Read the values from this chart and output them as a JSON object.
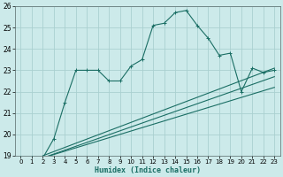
{
  "xlabel": "Humidex (Indice chaleur)",
  "background_color": "#cceaea",
  "grid_color": "#aad0d0",
  "line_color": "#1a6e64",
  "xlim": [
    -0.5,
    23.5
  ],
  "ylim": [
    19,
    26
  ],
  "xticks": [
    0,
    1,
    2,
    3,
    4,
    5,
    6,
    7,
    8,
    9,
    10,
    11,
    12,
    13,
    14,
    15,
    16,
    17,
    18,
    19,
    20,
    21,
    22,
    23
  ],
  "yticks": [
    19,
    20,
    21,
    22,
    23,
    24,
    25,
    26
  ],
  "series1_x": [
    0,
    1,
    2,
    3,
    4,
    5,
    6,
    7,
    8,
    9,
    10,
    11,
    12,
    13,
    14,
    15,
    16,
    17,
    18,
    19,
    20,
    21,
    22,
    23
  ],
  "series1_y": [
    18.9,
    18.9,
    18.9,
    19.8,
    21.5,
    23.0,
    23.0,
    23.0,
    22.5,
    22.5,
    23.2,
    23.5,
    25.1,
    25.2,
    25.7,
    25.8,
    25.1,
    24.5,
    23.7,
    23.8,
    22.0,
    23.1,
    22.9,
    23.0
  ],
  "series2_x": [
    2,
    23
  ],
  "series2_y": [
    19.0,
    23.1
  ],
  "series3_x": [
    2,
    23
  ],
  "series3_y": [
    18.9,
    22.7
  ],
  "series4_x": [
    2,
    23
  ],
  "series4_y": [
    18.9,
    22.2
  ]
}
